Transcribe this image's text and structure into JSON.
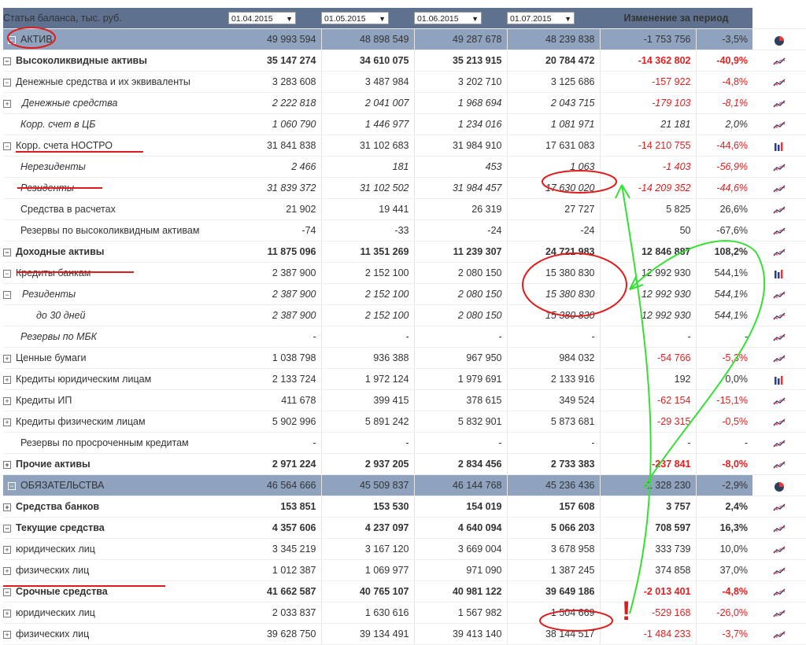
{
  "header": {
    "title": "Статья баланса, тыс. руб.",
    "dates": [
      "01.04.2015",
      "01.05.2015",
      "01.06.2015",
      "01.07.2015"
    ],
    "change_label": "Изменение за период"
  },
  "rows": [
    {
      "label": "АКТИВ",
      "v": [
        "49 993 594",
        "48 898 549",
        "49 287 678",
        "48 239 838"
      ],
      "d": "-1 753 756",
      "p": "-3,5%",
      "style": "section",
      "exp": "-",
      "icon": "pie"
    },
    {
      "label": "Высоколиквидные активы",
      "v": [
        "35 147 274",
        "34 610 075",
        "35 213 915",
        "20 784 472"
      ],
      "d": "-14 362 802",
      "p": "-40,9%",
      "style": "b",
      "exp": "-",
      "neg": true,
      "icon": "line"
    },
    {
      "label": "Денежные средства и их эквиваленты",
      "v": [
        "3 283 608",
        "3 487 984",
        "3 202 710",
        "3 125 686"
      ],
      "d": "-157 922",
      "p": "-4,8%",
      "style": "n",
      "exp": "-",
      "neg": true,
      "icon": "line"
    },
    {
      "label": "Денежные средства",
      "v": [
        "2 222 818",
        "2 041 007",
        "1 968 694",
        "2 043 715"
      ],
      "d": "-179 103",
      "p": "-8,1%",
      "style": "i",
      "exp": "+",
      "neg": true,
      "icon": "line"
    },
    {
      "label": "Корр. счет в ЦБ",
      "v": [
        "1 060 790",
        "1 446 977",
        "1 234 016",
        "1 081 971"
      ],
      "d": "21 181",
      "p": "2,0%",
      "style": "i",
      "exp": "",
      "icon": "line"
    },
    {
      "label": "Корр. счета НОСТРО",
      "v": [
        "31 841 838",
        "31 102 683",
        "31 984 910",
        "17 631 083"
      ],
      "d": "-14 210 755",
      "p": "-44,6%",
      "style": "n",
      "exp": "-",
      "neg": true,
      "icon": "bar"
    },
    {
      "label": "Нерезиденты",
      "v": [
        "2 466",
        "181",
        "453",
        "1 063"
      ],
      "d": "-1 403",
      "p": "-56,9%",
      "style": "i",
      "exp": "",
      "neg": true,
      "icon": "line"
    },
    {
      "label": "Резиденты",
      "v": [
        "31 839 372",
        "31 102 502",
        "31 984 457",
        "17 630 020"
      ],
      "d": "-14 209 352",
      "p": "-44,6%",
      "style": "i",
      "exp": "",
      "neg": true,
      "icon": "line"
    },
    {
      "label": "Средства в расчетах",
      "v": [
        "21 902",
        "19 441",
        "26 319",
        "27 727"
      ],
      "d": "5 825",
      "p": "26,6%",
      "style": "n",
      "exp": "",
      "icon": "line"
    },
    {
      "label": "Резервы по высоколиквидным активам",
      "v": [
        "-74",
        "-33",
        "-24",
        "-24"
      ],
      "d": "50",
      "p": "-67,6%",
      "style": "n",
      "exp": "",
      "icon": "line"
    },
    {
      "label": "Доходные активы",
      "v": [
        "11 875 096",
        "11 351 269",
        "11 239 307",
        "24 721 983"
      ],
      "d": "12 846 887",
      "p": "108,2%",
      "style": "b",
      "exp": "-",
      "icon": "line"
    },
    {
      "label": "Кредиты банкам",
      "v": [
        "2 387 900",
        "2 152 100",
        "2 080 150",
        "15 380 830"
      ],
      "d": "12 992 930",
      "p": "544,1%",
      "style": "n",
      "exp": "-",
      "icon": "bar"
    },
    {
      "label": "Резиденты",
      "v": [
        "2 387 900",
        "2 152 100",
        "2 080 150",
        "15 380 830"
      ],
      "d": "12 992 930",
      "p": "544,1%",
      "style": "i",
      "exp": "-",
      "icon": "line"
    },
    {
      "label": "до 30 дней",
      "v": [
        "2 387 900",
        "2 152 100",
        "2 080 150",
        "15 380 830"
      ],
      "d": "12 992 930",
      "p": "544,1%",
      "style": "i2",
      "exp": "",
      "icon": "line"
    },
    {
      "label": "Резервы по МБК",
      "v": [
        "-",
        "-",
        "-",
        "-"
      ],
      "d": "-",
      "p": "-",
      "style": "i",
      "exp": "",
      "icon": "line"
    },
    {
      "label": "Ценные бумаги",
      "v": [
        "1 038 798",
        "936 388",
        "967 950",
        "984 032"
      ],
      "d": "-54 766",
      "p": "-5,3%",
      "style": "n",
      "exp": "+",
      "neg": true,
      "icon": "line"
    },
    {
      "label": "Кредиты юридическим лицам",
      "v": [
        "2 133 724",
        "1 972 124",
        "1 979 691",
        "2 133 916"
      ],
      "d": "192",
      "p": "0,0%",
      "style": "n",
      "exp": "+",
      "icon": "bar"
    },
    {
      "label": "Кредиты ИП",
      "v": [
        "411 678",
        "399 415",
        "378 615",
        "349 524"
      ],
      "d": "-62 154",
      "p": "-15,1%",
      "style": "n",
      "exp": "+",
      "neg": true,
      "icon": "line"
    },
    {
      "label": "Кредиты физическим лицам",
      "v": [
        "5 902 996",
        "5 891 242",
        "5 832 901",
        "5 873 681"
      ],
      "d": "-29 315",
      "p": "-0,5%",
      "style": "n",
      "exp": "+",
      "neg": true,
      "icon": "line"
    },
    {
      "label": "Резервы по просроченным кредитам",
      "v": [
        "-",
        "-",
        "-",
        "-"
      ],
      "d": "-",
      "p": "-",
      "style": "n",
      "exp": "",
      "icon": "line"
    },
    {
      "label": "Прочие активы",
      "v": [
        "2 971 224",
        "2 937 205",
        "2 834 456",
        "2 733 383"
      ],
      "d": "-237 841",
      "p": "-8,0%",
      "style": "b",
      "exp": "+",
      "neg": true,
      "icon": "line"
    },
    {
      "label": "ОБЯЗАТЕЛЬСТВА",
      "v": [
        "46 564 666",
        "45 509 837",
        "46 144 768",
        "45 236 436"
      ],
      "d": "-1 328 230",
      "p": "-2,9%",
      "style": "section",
      "exp": "-",
      "icon": "pie"
    },
    {
      "label": "Средства банков",
      "v": [
        "153 851",
        "153 530",
        "154 019",
        "157 608"
      ],
      "d": "3 757",
      "p": "2,4%",
      "style": "b",
      "exp": "+",
      "icon": "line"
    },
    {
      "label": "Текущие средства",
      "v": [
        "4 357 606",
        "4 237 097",
        "4 640 094",
        "5 066 203"
      ],
      "d": "708 597",
      "p": "16,3%",
      "style": "b",
      "exp": "-",
      "icon": "line"
    },
    {
      "label": "юридических лиц",
      "v": [
        "3 345 219",
        "3 167 120",
        "3 669 004",
        "3 678 958"
      ],
      "d": "333 739",
      "p": "10,0%",
      "style": "n",
      "exp": "+",
      "icon": "line"
    },
    {
      "label": "физических лиц",
      "v": [
        "1 012 387",
        "1 069 977",
        "971 090",
        "1 387 245"
      ],
      "d": "374 858",
      "p": "37,0%",
      "style": "n",
      "exp": "+",
      "icon": "line"
    },
    {
      "label": "Срочные средства",
      "v": [
        "41 662 587",
        "40 765 107",
        "40 981 122",
        "39 649 186"
      ],
      "d": "-2 013 401",
      "p": "-4,8%",
      "style": "b",
      "exp": "-",
      "neg": true,
      "icon": "line"
    },
    {
      "label": "юридических лиц",
      "v": [
        "2 033 837",
        "1 630 616",
        "1 567 982",
        "1 504 669"
      ],
      "d": "-529 168",
      "p": "-26,0%",
      "style": "n",
      "exp": "+",
      "neg": true,
      "icon": "line"
    },
    {
      "label": "физических лиц",
      "v": [
        "39 628 750",
        "39 134 491",
        "39 413 140",
        "38 144 517"
      ],
      "d": "-1 484 233",
      "p": "-3,7%",
      "style": "n",
      "exp": "+",
      "neg": true,
      "icon": "line"
    }
  ],
  "annotation_mark": "!"
}
